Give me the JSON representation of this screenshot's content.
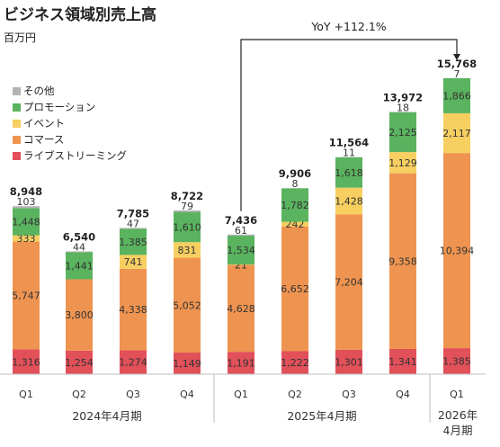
{
  "title": "ビジネス領域別売上高",
  "unit": "百万円",
  "chart_data": {
    "type": "bar",
    "stacked": true,
    "title": "ビジネス領域別売上高",
    "ylabel": "百万円",
    "categories": [
      "Q1",
      "Q2",
      "Q3",
      "Q4",
      "Q1",
      "Q2",
      "Q3",
      "Q4",
      "Q1"
    ],
    "groups": [
      {
        "label": "2024年4月期",
        "from": 0,
        "to": 3
      },
      {
        "label": "2025年4月期",
        "from": 4,
        "to": 7
      },
      {
        "label": "2026年\n4月期",
        "from": 8,
        "to": 8
      }
    ],
    "series": [
      {
        "name": "ライブストリーミング",
        "color": "#e2505a",
        "values": [
          1316,
          1254,
          1274,
          1149,
          1191,
          1222,
          1301,
          1341,
          1385
        ]
      },
      {
        "name": "コマース",
        "color": "#ef9450",
        "values": [
          5747,
          3800,
          4338,
          5052,
          4628,
          6652,
          7204,
          9358,
          10394
        ]
      },
      {
        "name": "イベント",
        "color": "#f7cf61",
        "values": [
          333,
          null,
          741,
          831,
          21,
          242,
          1428,
          1129,
          2117
        ]
      },
      {
        "name": "プロモーション",
        "color": "#5ab35e",
        "values": [
          1448,
          1441,
          1385,
          1610,
          1534,
          1782,
          1618,
          2125,
          1866
        ]
      },
      {
        "name": "その他",
        "color": "#b3b3b3",
        "values": [
          103,
          44,
          47,
          79,
          61,
          8,
          11,
          18,
          7
        ]
      }
    ],
    "totals": [
      8948,
      6540,
      7785,
      8722,
      7436,
      9906,
      11564,
      13972,
      15768
    ],
    "labels": {
      "ライブストリーミング": [
        "1,316",
        "1,254",
        "1,274",
        "1,149",
        "1,191",
        "1,222",
        "1,301",
        "1,341",
        "1,385"
      ],
      "コマース": [
        "5,747",
        "3,800",
        "4,338",
        "5,052",
        "4,628",
        "6,652",
        "7,204",
        "9,358",
        "10,394"
      ],
      "イベント": [
        "333",
        "",
        "741",
        "831",
        "21",
        "242",
        "1,428",
        "1,129",
        "2,117"
      ],
      "プロモーション": [
        "1,448",
        "1,441",
        "1,385",
        "1,610",
        "1,534",
        "1,782",
        "1,618",
        "2,125",
        "1,866"
      ],
      "その他": [
        "103",
        "44",
        "47",
        "79",
        "61",
        "8",
        "11",
        "18",
        "7"
      ],
      "totals": [
        "8,948",
        "6,540",
        "7,785",
        "8,722",
        "7,436",
        "9,906",
        "11,564",
        "13,972",
        "15,768"
      ]
    },
    "legend": [
      "その他",
      "プロモーション",
      "イベント",
      "コマース",
      "ライブストリーミング"
    ],
    "legend_colors": [
      "#b3b3b3",
      "#5ab35e",
      "#f7cf61",
      "#ef9450",
      "#e2505a"
    ],
    "annotation": {
      "text": "YoY +112.1%",
      "from_index": 4,
      "to_index": 8
    },
    "ylim": [
      0,
      16600
    ],
    "grid": false,
    "legend_position": "top-left"
  }
}
